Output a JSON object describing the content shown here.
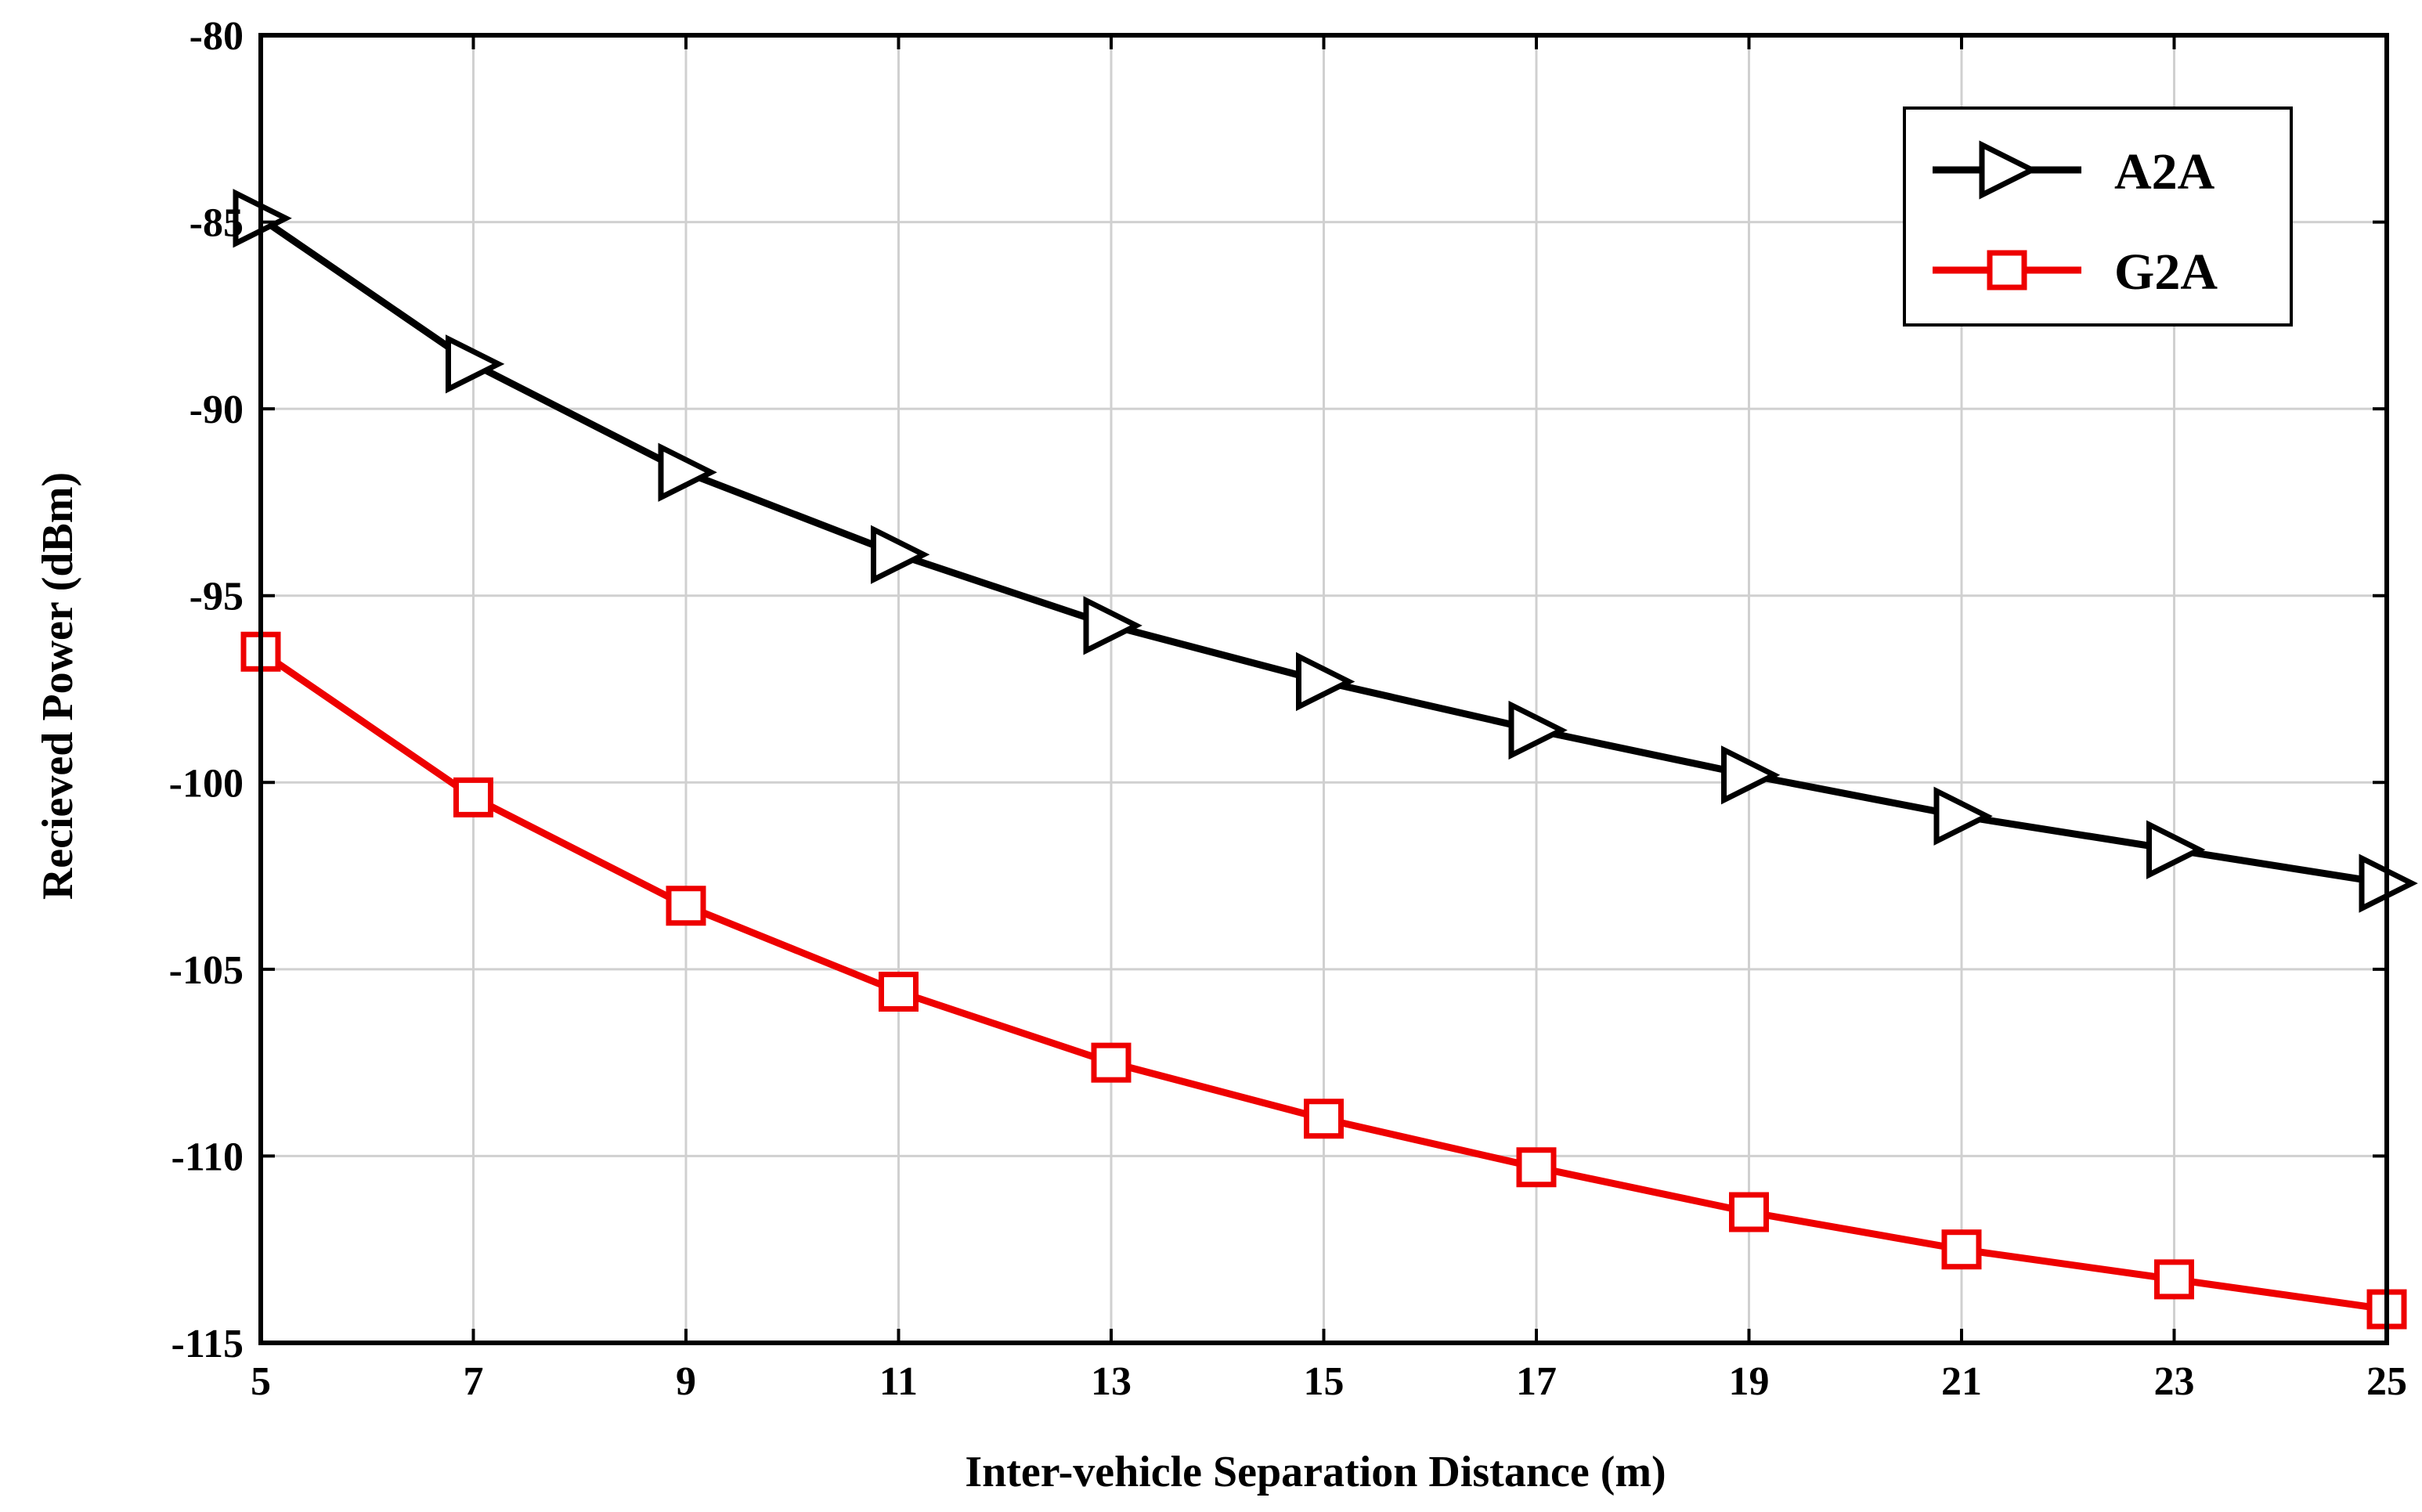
{
  "chart_data": {
    "type": "line",
    "title": "",
    "xlabel": "Inter-vehicle Separation Distance  (m)",
    "ylabel": "Recieved Power (dBm)",
    "x": [
      5,
      7,
      9,
      11,
      13,
      15,
      17,
      19,
      21,
      23,
      25
    ],
    "xlim": [
      5,
      25
    ],
    "ylim": [
      -115,
      -80
    ],
    "xticks": [
      5,
      7,
      9,
      11,
      13,
      15,
      17,
      19,
      21,
      23,
      25
    ],
    "yticks": [
      -80,
      -85,
      -90,
      -95,
      -100,
      -105,
      -110,
      -115
    ],
    "grid": true,
    "legend_position": "top-right",
    "series": [
      {
        "name": "A2A",
        "color": "#000000",
        "marker": "triangle-right",
        "values": [
          -84.9,
          -88.8,
          -91.7,
          -93.9,
          -95.8,
          -97.3,
          -98.6,
          -99.8,
          -100.9,
          -101.8,
          -102.7
        ]
      },
      {
        "name": "G2A",
        "color": "#ee0000",
        "marker": "square",
        "values": [
          -96.5,
          -100.4,
          -103.3,
          -105.6,
          -107.5,
          -109.0,
          -110.3,
          -111.5,
          -112.5,
          -113.3,
          -114.1
        ]
      }
    ]
  }
}
